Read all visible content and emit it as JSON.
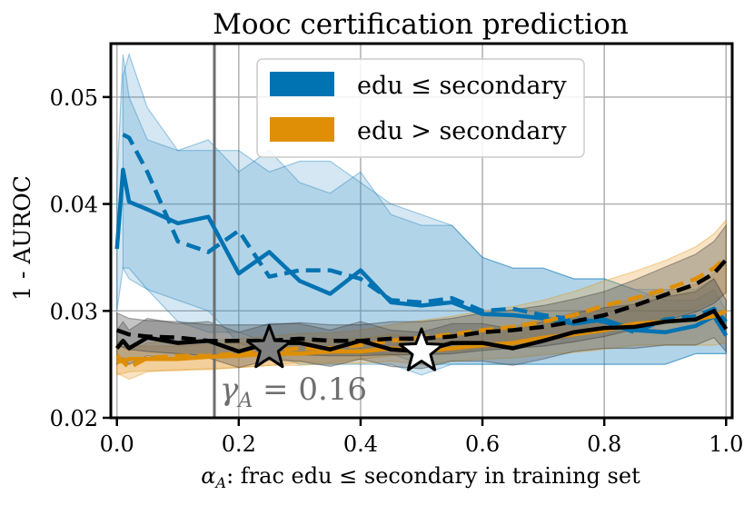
{
  "chart_data": {
    "type": "line",
    "title": "Mooc certification prediction",
    "xlabel_prefix": "α",
    "xlabel_sub": "A",
    "xlabel_text": ": frac edu ≤ secondary in training set",
    "ylabel": "1 - AUROC",
    "xlim": [
      -0.01,
      1.01
    ],
    "ylim": [
      0.02,
      0.055
    ],
    "xticks": [
      0.0,
      0.2,
      0.4,
      0.6,
      0.8,
      1.0
    ],
    "xtick_labels": [
      "0.0",
      "0.2",
      "0.4",
      "0.6",
      "0.8",
      "1.0"
    ],
    "yticks": [
      0.02,
      0.03,
      0.04,
      0.05
    ],
    "ytick_labels": [
      "0.02",
      "0.03",
      "0.04",
      "0.05"
    ],
    "grid": true,
    "legend_position": "top-center",
    "legend": [
      {
        "label": "edu ≤ secondary",
        "color": "#0173b2"
      },
      {
        "label": "edu > secondary",
        "color": "#de8f05"
      }
    ],
    "vline": {
      "x": 0.16,
      "label_symbol": "γ",
      "label_sub": "A",
      "label_rest": " = 0.16",
      "color": "#6e6e6e"
    },
    "markers": [
      {
        "name": "optimal-star-gray",
        "x": 0.25,
        "y": 0.0265,
        "fill": "#808080"
      },
      {
        "name": "optimal-star-white",
        "x": 0.5,
        "y": 0.0262,
        "fill": "#ffffff"
      }
    ],
    "series": [
      {
        "name": "edu ≤ secondary (solid)",
        "group": "blue",
        "style": "solid",
        "color": "#0173b2",
        "x": [
          0.0,
          0.01,
          0.02,
          0.05,
          0.1,
          0.15,
          0.2,
          0.25,
          0.3,
          0.35,
          0.4,
          0.45,
          0.5,
          0.55,
          0.6,
          0.65,
          0.7,
          0.75,
          0.8,
          0.85,
          0.9,
          0.95,
          0.98,
          1.0
        ],
        "y": [
          0.0358,
          0.0432,
          0.0402,
          0.0395,
          0.0382,
          0.0388,
          0.0335,
          0.0355,
          0.0328,
          0.0316,
          0.0338,
          0.0308,
          0.0305,
          0.0308,
          0.0297,
          0.0296,
          0.0293,
          0.0288,
          0.0292,
          0.0282,
          0.028,
          0.0286,
          0.0295,
          0.0277
        ],
        "band_lo": [
          0.03,
          0.034,
          0.033,
          0.032,
          0.031,
          0.03,
          0.027,
          0.026,
          0.025,
          0.025,
          0.025,
          0.025,
          0.024,
          0.025,
          0.025,
          0.025,
          0.025,
          0.025,
          0.025,
          0.025,
          0.025,
          0.026,
          0.026,
          0.026
        ],
        "band_hi": [
          0.042,
          0.054,
          0.05,
          0.046,
          0.045,
          0.046,
          0.043,
          0.045,
          0.042,
          0.041,
          0.043,
          0.039,
          0.038,
          0.038,
          0.035,
          0.034,
          0.034,
          0.033,
          0.033,
          0.032,
          0.031,
          0.031,
          0.032,
          0.03
        ]
      },
      {
        "name": "edu ≤ secondary (dashed)",
        "group": "blue",
        "style": "dashed",
        "color": "#0173b2",
        "x": [
          0.01,
          0.02,
          0.05,
          0.1,
          0.15,
          0.2,
          0.25,
          0.3,
          0.35,
          0.4,
          0.45,
          0.5,
          0.55,
          0.6,
          0.65,
          0.7,
          0.75,
          0.8,
          0.85,
          0.9,
          0.95,
          0.98,
          1.0
        ],
        "y": [
          0.0465,
          0.0462,
          0.043,
          0.0365,
          0.0355,
          0.0375,
          0.0332,
          0.0338,
          0.0338,
          0.033,
          0.031,
          0.0308,
          0.0312,
          0.03,
          0.0302,
          0.0296,
          0.0292,
          0.029,
          0.028,
          0.0292,
          0.0295,
          0.0302,
          0.029
        ],
        "band_lo": [
          0.034,
          0.034,
          0.032,
          0.029,
          0.028,
          0.028,
          0.027,
          0.027,
          0.026,
          0.026,
          0.026,
          0.025,
          0.025,
          0.025,
          0.025,
          0.025,
          0.025,
          0.025,
          0.025,
          0.025,
          0.026,
          0.026,
          0.026
        ],
        "band_hi": [
          0.052,
          0.054,
          0.049,
          0.045,
          0.045,
          0.045,
          0.043,
          0.044,
          0.044,
          0.042,
          0.04,
          0.039,
          0.038,
          0.035,
          0.034,
          0.034,
          0.033,
          0.033,
          0.032,
          0.032,
          0.032,
          0.033,
          0.031
        ]
      },
      {
        "name": "edu > secondary (solid)",
        "group": "orange",
        "style": "solid",
        "color": "#de8f05",
        "x": [
          0.0,
          0.02,
          0.05,
          0.1,
          0.15,
          0.2,
          0.25,
          0.3,
          0.35,
          0.4,
          0.45,
          0.5,
          0.55,
          0.6,
          0.65,
          0.7,
          0.75,
          0.8,
          0.85,
          0.9,
          0.95,
          0.98,
          1.0
        ],
        "y": [
          0.0252,
          0.0255,
          0.0255,
          0.0255,
          0.0257,
          0.0258,
          0.026,
          0.026,
          0.0262,
          0.0262,
          0.0265,
          0.0262,
          0.0265,
          0.0268,
          0.027,
          0.0275,
          0.0278,
          0.0282,
          0.0288,
          0.029,
          0.0292,
          0.0295,
          0.03
        ],
        "band_lo": [
          0.024,
          0.0243,
          0.0244,
          0.0244,
          0.0246,
          0.0247,
          0.0249,
          0.0249,
          0.0251,
          0.0251,
          0.0253,
          0.025,
          0.0253,
          0.0255,
          0.0256,
          0.0259,
          0.0261,
          0.0264,
          0.0268,
          0.0268,
          0.0268,
          0.0268,
          0.027
        ],
        "band_hi": [
          0.0265,
          0.0268,
          0.0267,
          0.0267,
          0.0269,
          0.027,
          0.0272,
          0.0272,
          0.0274,
          0.0274,
          0.0278,
          0.0275,
          0.0278,
          0.0282,
          0.0285,
          0.0292,
          0.0297,
          0.0303,
          0.0312,
          0.0318,
          0.0325,
          0.0335,
          0.0345
        ]
      },
      {
        "name": "edu > secondary (dashed)",
        "group": "orange",
        "style": "dashed",
        "color": "#de8f05",
        "x": [
          0.0,
          0.02,
          0.05,
          0.1,
          0.15,
          0.2,
          0.25,
          0.3,
          0.35,
          0.4,
          0.45,
          0.5,
          0.55,
          0.6,
          0.65,
          0.7,
          0.75,
          0.8,
          0.85,
          0.9,
          0.95,
          0.98,
          1.0
        ],
        "y": [
          0.0258,
          0.0247,
          0.0256,
          0.0258,
          0.0258,
          0.026,
          0.0262,
          0.0265,
          0.0265,
          0.0268,
          0.0272,
          0.0275,
          0.0278,
          0.0282,
          0.0285,
          0.029,
          0.0296,
          0.0305,
          0.0312,
          0.032,
          0.033,
          0.034,
          0.035
        ],
        "band_lo": [
          0.0242,
          0.0236,
          0.0243,
          0.0245,
          0.0245,
          0.0247,
          0.0249,
          0.0252,
          0.0252,
          0.0255,
          0.0258,
          0.026,
          0.0262,
          0.0265,
          0.0267,
          0.0271,
          0.0276,
          0.0283,
          0.0288,
          0.0294,
          0.0302,
          0.031,
          0.0318
        ],
        "band_hi": [
          0.0272,
          0.0262,
          0.027,
          0.0272,
          0.0272,
          0.0274,
          0.0276,
          0.0279,
          0.0279,
          0.0282,
          0.0287,
          0.0291,
          0.0295,
          0.03,
          0.0304,
          0.031,
          0.0318,
          0.0328,
          0.0337,
          0.0347,
          0.036,
          0.0372,
          0.0385
        ]
      },
      {
        "name": "overall (solid)",
        "group": "black",
        "style": "solid",
        "color": "#000000",
        "x": [
          0.0,
          0.01,
          0.02,
          0.05,
          0.1,
          0.15,
          0.2,
          0.25,
          0.3,
          0.35,
          0.4,
          0.45,
          0.5,
          0.55,
          0.6,
          0.65,
          0.7,
          0.75,
          0.8,
          0.85,
          0.9,
          0.95,
          0.98,
          1.0
        ],
        "y": [
          0.0265,
          0.0272,
          0.0265,
          0.0275,
          0.027,
          0.0272,
          0.0262,
          0.027,
          0.027,
          0.0264,
          0.0272,
          0.0264,
          0.0262,
          0.027,
          0.027,
          0.0265,
          0.0272,
          0.028,
          0.0284,
          0.0285,
          0.029,
          0.0292,
          0.03,
          0.0283
        ],
        "band_lo": [
          0.025,
          0.0256,
          0.025,
          0.0258,
          0.0254,
          0.0256,
          0.0247,
          0.0254,
          0.0253,
          0.0248,
          0.0255,
          0.0248,
          0.0246,
          0.0253,
          0.0253,
          0.0249,
          0.0255,
          0.0262,
          0.0265,
          0.0265,
          0.0268,
          0.0268,
          0.0275,
          0.0262
        ],
        "band_hi": [
          0.0282,
          0.029,
          0.0282,
          0.0293,
          0.0288,
          0.029,
          0.028,
          0.0288,
          0.0288,
          0.0282,
          0.029,
          0.0282,
          0.028,
          0.0288,
          0.0288,
          0.0283,
          0.029,
          0.0298,
          0.0303,
          0.0306,
          0.0313,
          0.0318,
          0.033,
          0.031
        ]
      },
      {
        "name": "overall (dashed)",
        "group": "black",
        "style": "dashed",
        "color": "#000000",
        "x": [
          0.0,
          0.02,
          0.05,
          0.1,
          0.15,
          0.2,
          0.25,
          0.3,
          0.35,
          0.4,
          0.45,
          0.5,
          0.55,
          0.6,
          0.65,
          0.7,
          0.75,
          0.8,
          0.85,
          0.9,
          0.95,
          0.98,
          1.0
        ],
        "y": [
          0.0282,
          0.0278,
          0.0276,
          0.0275,
          0.0272,
          0.0272,
          0.0272,
          0.0274,
          0.0272,
          0.0272,
          0.0274,
          0.0274,
          0.0276,
          0.028,
          0.0282,
          0.0285,
          0.029,
          0.0296,
          0.0305,
          0.0315,
          0.0325,
          0.0335,
          0.0348
        ],
        "band_lo": [
          0.0268,
          0.0264,
          0.0262,
          0.026,
          0.0258,
          0.0258,
          0.0258,
          0.0259,
          0.0258,
          0.0258,
          0.0259,
          0.0259,
          0.026,
          0.0263,
          0.0265,
          0.0267,
          0.0271,
          0.0276,
          0.0283,
          0.0291,
          0.0299,
          0.0307,
          0.0317
        ],
        "band_hi": [
          0.0298,
          0.0293,
          0.0291,
          0.029,
          0.0287,
          0.0287,
          0.0287,
          0.0289,
          0.0287,
          0.0287,
          0.029,
          0.029,
          0.0293,
          0.0298,
          0.0301,
          0.0305,
          0.0311,
          0.0318,
          0.0329,
          0.0341,
          0.0353,
          0.0365,
          0.038
        ]
      }
    ]
  }
}
